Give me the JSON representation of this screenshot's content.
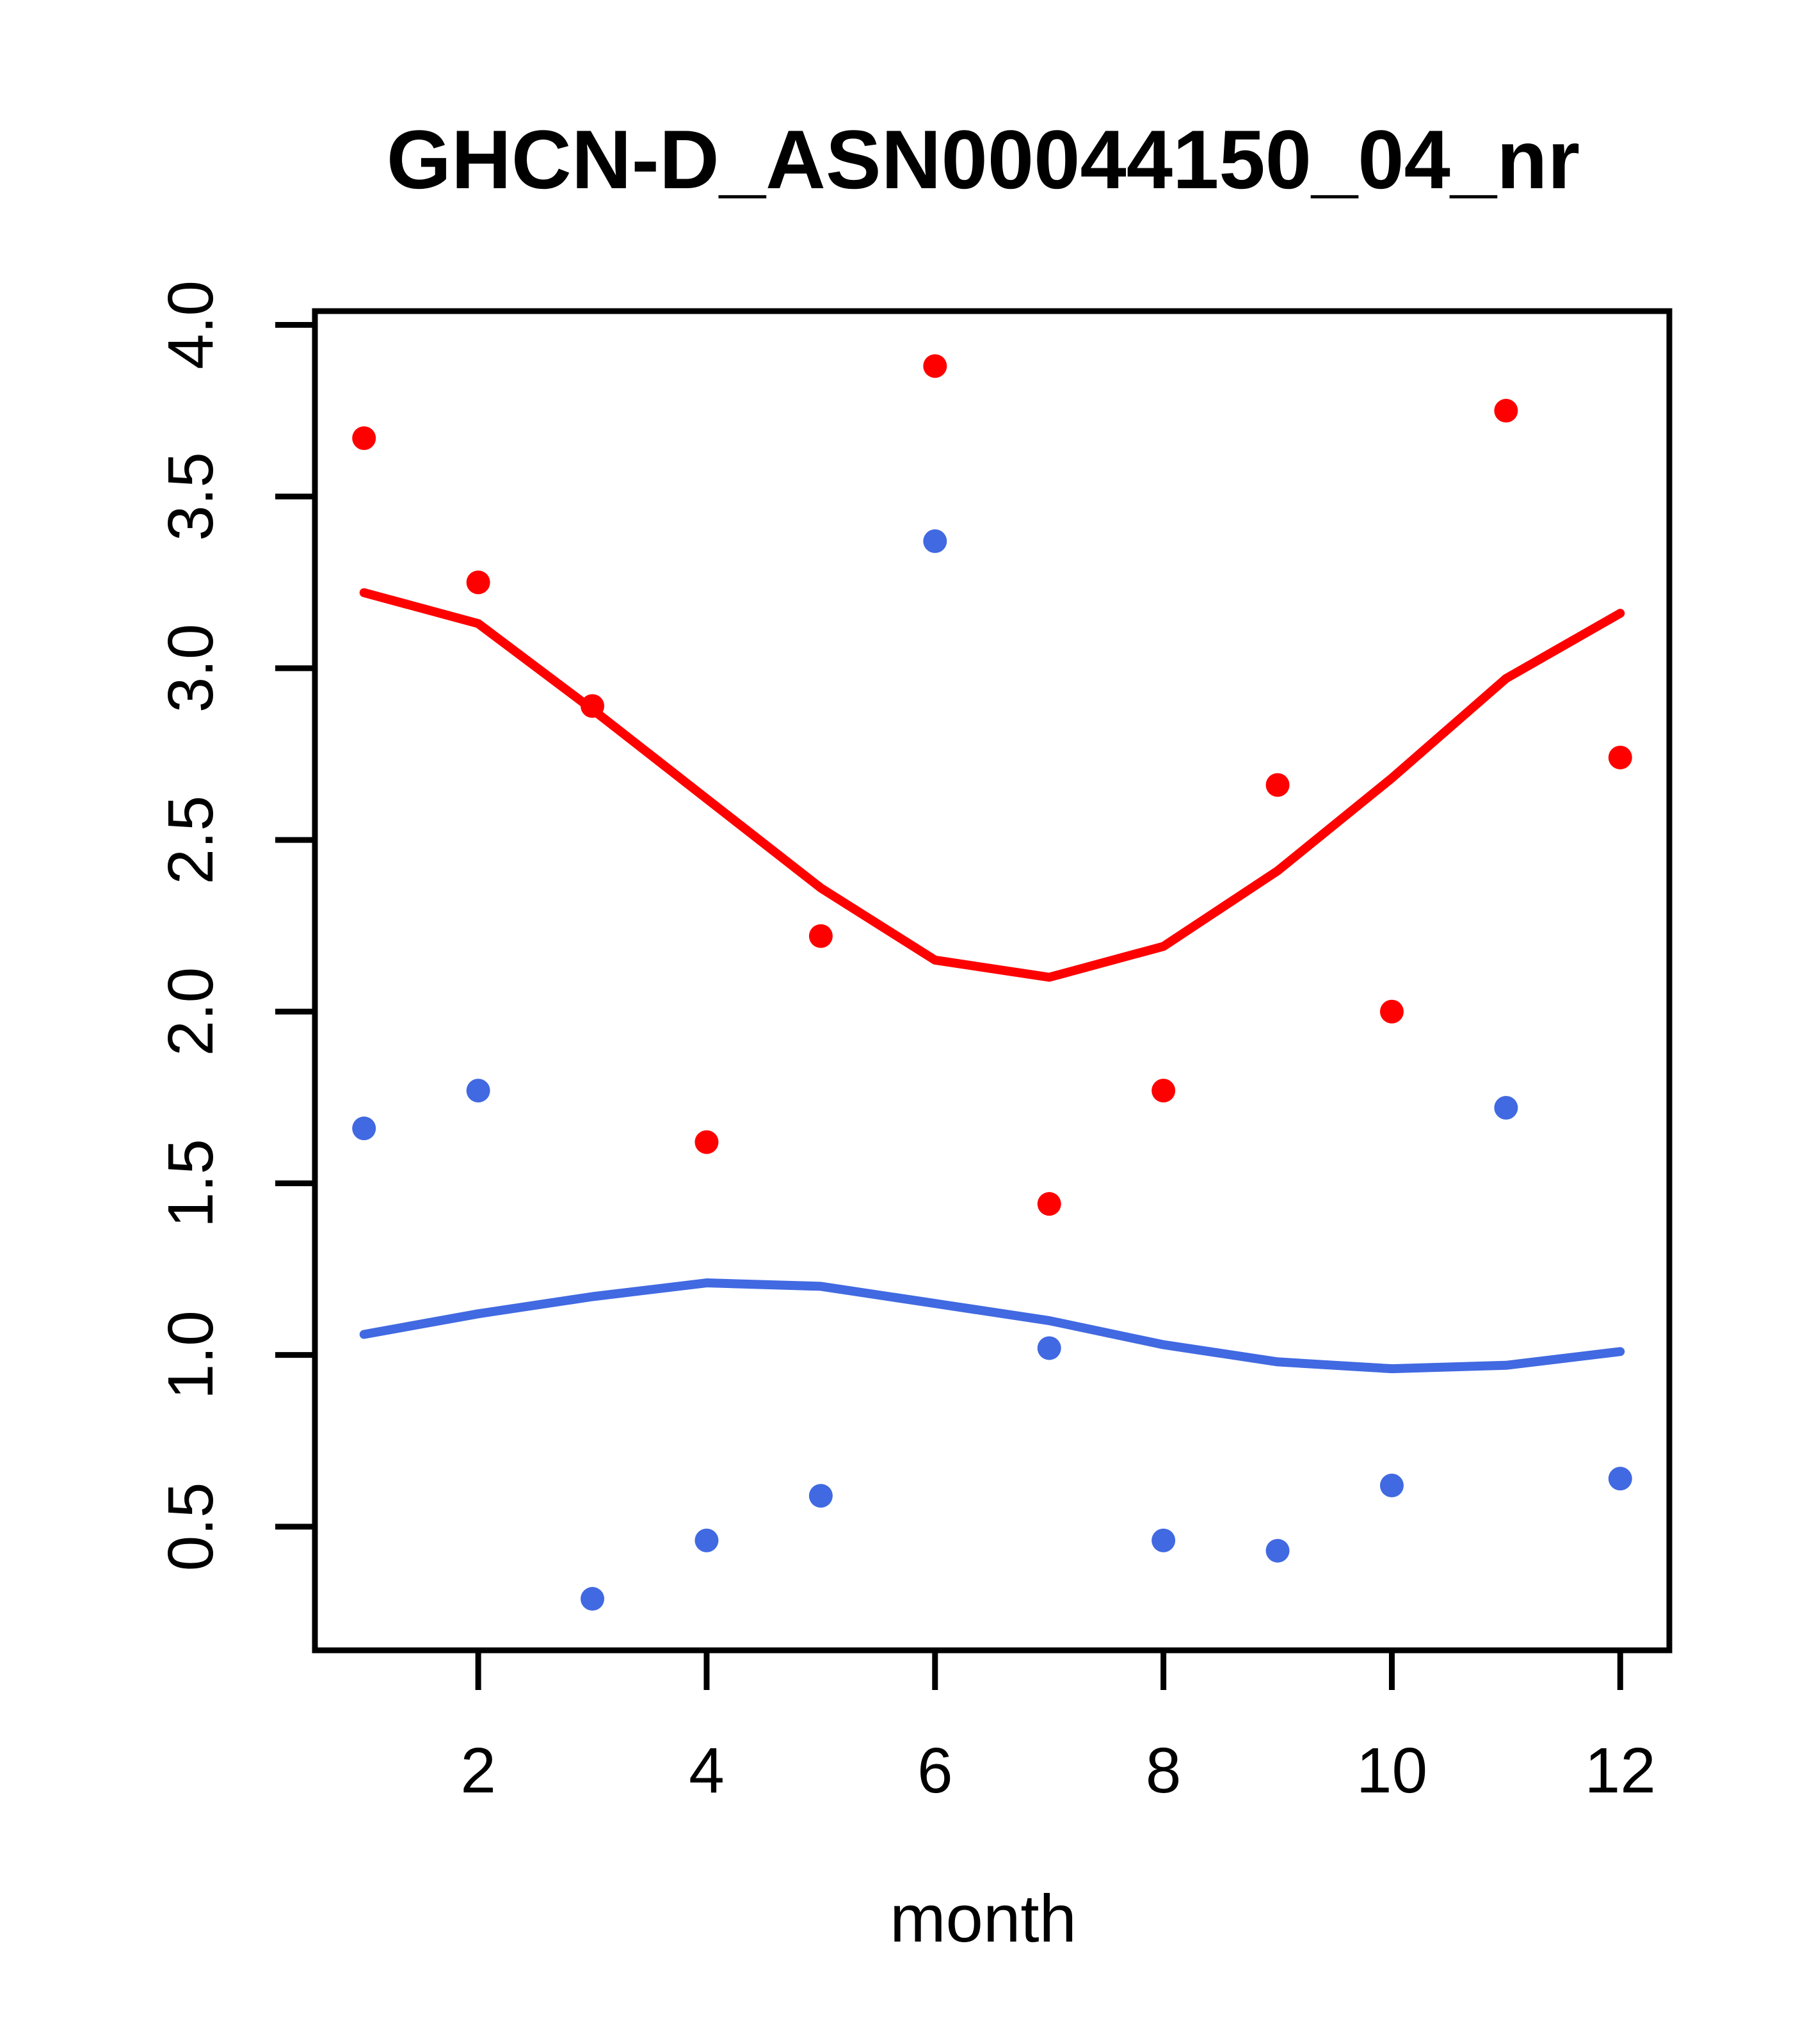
{
  "chart_data": {
    "type": "scatter",
    "title": "GHCN-D_ASN00044150_04_nr",
    "xlabel": "month",
    "ylabel": "",
    "xlim": [
      0.57,
      12.43
    ],
    "ylim": [
      0.14,
      4.04
    ],
    "x_ticks": [
      "2",
      "4",
      "6",
      "8",
      "10",
      "12"
    ],
    "y_ticks": [
      "0.5",
      "1.0",
      "1.5",
      "2.0",
      "2.5",
      "3.0",
      "3.5",
      "4.0"
    ],
    "grid": false,
    "legend_position": "none",
    "colors": {
      "red": "#FF0000",
      "blue": "#4169E1",
      "axis": "#000000",
      "background": "#FFFFFF"
    },
    "x": [
      1,
      2,
      3,
      4,
      5,
      6,
      7,
      8,
      9,
      10,
      11,
      12
    ],
    "series": [
      {
        "name": "red-points",
        "type": "points",
        "color": "red",
        "values": [
          3.67,
          3.25,
          2.89,
          1.62,
          2.22,
          3.88,
          1.44,
          1.77,
          2.66,
          2.0,
          3.75,
          2.74
        ]
      },
      {
        "name": "blue-points",
        "type": "points",
        "color": "blue",
        "values": [
          1.66,
          1.77,
          0.29,
          0.46,
          0.59,
          3.37,
          1.02,
          0.46,
          0.43,
          0.62,
          1.72,
          0.64
        ]
      },
      {
        "name": "red-loess-line",
        "type": "line",
        "color": "red",
        "values": [
          3.22,
          3.13,
          2.88,
          2.62,
          2.36,
          2.15,
          2.1,
          2.19,
          2.41,
          2.68,
          2.97,
          3.16
        ]
      },
      {
        "name": "blue-loess-line",
        "type": "line",
        "color": "blue",
        "values": [
          1.06,
          1.12,
          1.17,
          1.21,
          1.2,
          1.15,
          1.1,
          1.03,
          0.98,
          0.96,
          0.97,
          1.01
        ]
      }
    ]
  }
}
